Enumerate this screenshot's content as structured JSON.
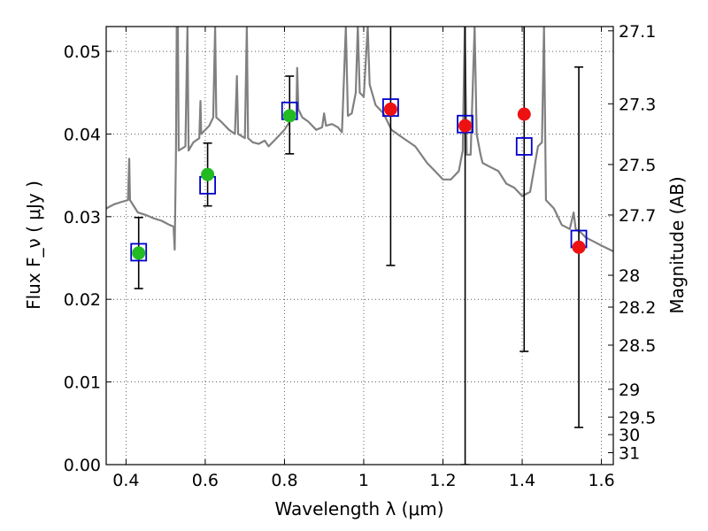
{
  "chart_data": {
    "type": "scatter",
    "xlabel": "Wavelength  λ (μm)",
    "ylabel": "Flux  F_ν  ( μJy )",
    "ylabel_right": "Magnitude (AB)",
    "xlim": [
      0.35,
      1.63
    ],
    "ylim": [
      0.0,
      0.053
    ],
    "x_ticks": [
      {
        "value": 0.4,
        "label": "0.4"
      },
      {
        "value": 0.6,
        "label": "0.6"
      },
      {
        "value": 0.8,
        "label": "0.8"
      },
      {
        "value": 1.0,
        "label": "1"
      },
      {
        "value": 1.2,
        "label": "1.2"
      },
      {
        "value": 1.4,
        "label": "1.4"
      },
      {
        "value": 1.6,
        "label": "1.6"
      }
    ],
    "y_ticks": [
      {
        "value": 0.0,
        "label": "0.00"
      },
      {
        "value": 0.01,
        "label": "0.01"
      },
      {
        "value": 0.02,
        "label": "0.02"
      },
      {
        "value": 0.03,
        "label": "0.03"
      },
      {
        "value": 0.04,
        "label": "0.04"
      },
      {
        "value": 0.05,
        "label": "0.05"
      }
    ],
    "right_ticks": [
      {
        "value": 27.1,
        "label": "27.1"
      },
      {
        "value": 27.3,
        "label": "27.3"
      },
      {
        "value": 27.5,
        "label": "27.5"
      },
      {
        "value": 27.7,
        "label": "27.7"
      },
      {
        "value": 28.0,
        "label": "28"
      },
      {
        "value": 28.2,
        "label": "28.2"
      },
      {
        "value": 28.5,
        "label": "28.5"
      },
      {
        "value": 29.0,
        "label": "29"
      },
      {
        "value": 29.5,
        "label": "29.5"
      },
      {
        "value": 30.0,
        "label": "30"
      },
      {
        "value": 31.0,
        "label": "31"
      }
    ],
    "grid": true,
    "colors": {
      "model": "#808080",
      "model_box": "#0000cc",
      "detection": "#22bb22",
      "upper_limit": "#ee1111",
      "errorbar": "#000000"
    },
    "series": [
      {
        "kind": "model_spectrum",
        "points": [
          [
            0.35,
            0.031
          ],
          [
            0.37,
            0.0315
          ],
          [
            0.39,
            0.0318
          ],
          [
            0.405,
            0.032
          ],
          [
            0.408,
            0.037
          ],
          [
            0.41,
            0.032
          ],
          [
            0.43,
            0.0305
          ],
          [
            0.45,
            0.0302
          ],
          [
            0.47,
            0.0298
          ],
          [
            0.49,
            0.0295
          ],
          [
            0.51,
            0.029
          ],
          [
            0.52,
            0.0288
          ],
          [
            0.523,
            0.026
          ],
          [
            0.526,
            0.0375
          ],
          [
            0.528,
            0.053
          ],
          [
            0.531,
            0.053
          ],
          [
            0.533,
            0.038
          ],
          [
            0.55,
            0.0385
          ],
          [
            0.555,
            0.053
          ],
          [
            0.558,
            0.038
          ],
          [
            0.57,
            0.039
          ],
          [
            0.585,
            0.0395
          ],
          [
            0.588,
            0.044
          ],
          [
            0.59,
            0.04
          ],
          [
            0.61,
            0.041
          ],
          [
            0.62,
            0.042
          ],
          [
            0.625,
            0.053
          ],
          [
            0.628,
            0.042
          ],
          [
            0.64,
            0.0415
          ],
          [
            0.66,
            0.0405
          ],
          [
            0.675,
            0.04
          ],
          [
            0.68,
            0.047
          ],
          [
            0.683,
            0.04
          ],
          [
            0.7,
            0.0395
          ],
          [
            0.705,
            0.053
          ],
          [
            0.708,
            0.0395
          ],
          [
            0.72,
            0.039
          ],
          [
            0.735,
            0.0388
          ],
          [
            0.75,
            0.0392
          ],
          [
            0.76,
            0.0385
          ],
          [
            0.78,
            0.0395
          ],
          [
            0.8,
            0.0405
          ],
          [
            0.82,
            0.042
          ],
          [
            0.83,
            0.0425
          ],
          [
            0.832,
            0.048
          ],
          [
            0.835,
            0.043
          ],
          [
            0.845,
            0.042
          ],
          [
            0.86,
            0.0415
          ],
          [
            0.88,
            0.0405
          ],
          [
            0.895,
            0.0408
          ],
          [
            0.9,
            0.0425
          ],
          [
            0.905,
            0.041
          ],
          [
            0.92,
            0.0412
          ],
          [
            0.935,
            0.0408
          ],
          [
            0.945,
            0.0402
          ],
          [
            0.955,
            0.053
          ],
          [
            0.96,
            0.0422
          ],
          [
            0.97,
            0.0425
          ],
          [
            0.98,
            0.045
          ],
          [
            0.985,
            0.053
          ],
          [
            0.99,
            0.045
          ],
          [
            1.0,
            0.0445
          ],
          [
            1.01,
            0.053
          ],
          [
            1.015,
            0.046
          ],
          [
            1.03,
            0.0435
          ],
          [
            1.05,
            0.0425
          ],
          [
            1.07,
            0.0405
          ],
          [
            1.1,
            0.0395
          ],
          [
            1.13,
            0.0385
          ],
          [
            1.16,
            0.0365
          ],
          [
            1.18,
            0.0355
          ],
          [
            1.2,
            0.0345
          ],
          [
            1.22,
            0.0345
          ],
          [
            1.24,
            0.0355
          ],
          [
            1.25,
            0.038
          ],
          [
            1.255,
            0.053
          ],
          [
            1.26,
            0.0375
          ],
          [
            1.27,
            0.0375
          ],
          [
            1.28,
            0.053
          ],
          [
            1.285,
            0.04
          ],
          [
            1.295,
            0.0375
          ],
          [
            1.3,
            0.0365
          ],
          [
            1.32,
            0.036
          ],
          [
            1.34,
            0.0355
          ],
          [
            1.36,
            0.034
          ],
          [
            1.38,
            0.0335
          ],
          [
            1.4,
            0.0325
          ],
          [
            1.42,
            0.033
          ],
          [
            1.44,
            0.0385
          ],
          [
            1.45,
            0.039
          ],
          [
            1.455,
            0.053
          ],
          [
            1.46,
            0.032
          ],
          [
            1.48,
            0.031
          ],
          [
            1.5,
            0.029
          ],
          [
            1.52,
            0.0285
          ],
          [
            1.53,
            0.0305
          ],
          [
            1.535,
            0.0285
          ],
          [
            1.55,
            0.028
          ],
          [
            1.56,
            0.0275
          ],
          [
            1.58,
            0.027
          ],
          [
            1.6,
            0.0265
          ],
          [
            1.63,
            0.0258
          ]
        ]
      },
      {
        "kind": "model_photometry",
        "x": [
          0.432,
          0.606,
          0.813,
          1.068,
          1.256,
          1.405,
          1.543
        ],
        "y": [
          0.0257,
          0.0338,
          0.0428,
          0.0432,
          0.0412,
          0.0385,
          0.0273
        ]
      },
      {
        "kind": "detections",
        "x": [
          0.432,
          0.606,
          0.813
        ],
        "y": [
          0.0256,
          0.0351,
          0.0422
        ],
        "err_low": [
          0.0213,
          0.0313,
          0.0376
        ],
        "err_high": [
          0.0299,
          0.0389,
          0.047
        ]
      },
      {
        "kind": "upper_limits",
        "x": [
          1.068,
          1.256,
          1.405,
          1.543
        ],
        "y": [
          0.043,
          0.041,
          0.0424,
          0.0263
        ],
        "err_low": [
          0.0241,
          0.0,
          0.0137,
          0.0045
        ],
        "err_high": [
          0.053,
          0.053,
          0.053,
          0.0481
        ]
      }
    ]
  }
}
